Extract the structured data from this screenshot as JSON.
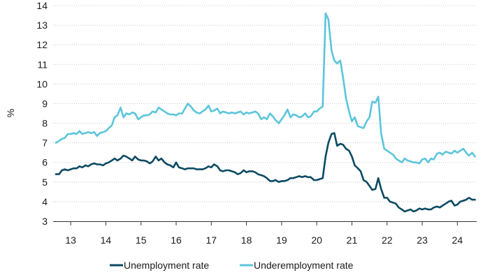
{
  "chart_data": {
    "type": "line",
    "ylabel": "%",
    "xlabel": "",
    "ylim": [
      3,
      14
    ],
    "y_ticks": [
      3,
      4,
      5,
      6,
      7,
      8,
      9,
      10,
      11,
      12,
      13,
      14
    ],
    "xlim": [
      2012.5,
      2024.55
    ],
    "x_ticks": [
      {
        "x": 2013,
        "label": "13"
      },
      {
        "x": 2014,
        "label": "14"
      },
      {
        "x": 2015,
        "label": "15"
      },
      {
        "x": 2016,
        "label": "16"
      },
      {
        "x": 2017,
        "label": "17"
      },
      {
        "x": 2018,
        "label": "18"
      },
      {
        "x": 2019,
        "label": "19"
      },
      {
        "x": 2020,
        "label": "20"
      },
      {
        "x": 2021,
        "label": "21"
      },
      {
        "x": 2022,
        "label": "22"
      },
      {
        "x": 2023,
        "label": "23"
      },
      {
        "x": 2024,
        "label": "24"
      }
    ],
    "grid": "horizontal dotted",
    "legend_position": "bottom",
    "series": [
      {
        "name": "Unemployment rate",
        "color": "#0b4a62",
        "points": [
          [
            2012.58,
            5.4
          ],
          [
            2012.67,
            5.4
          ],
          [
            2012.75,
            5.6
          ],
          [
            2012.83,
            5.65
          ],
          [
            2012.92,
            5.6
          ],
          [
            2013.0,
            5.65
          ],
          [
            2013.08,
            5.7
          ],
          [
            2013.17,
            5.7
          ],
          [
            2013.25,
            5.8
          ],
          [
            2013.33,
            5.75
          ],
          [
            2013.42,
            5.85
          ],
          [
            2013.5,
            5.8
          ],
          [
            2013.58,
            5.9
          ],
          [
            2013.67,
            5.95
          ],
          [
            2013.75,
            5.9
          ],
          [
            2013.83,
            5.9
          ],
          [
            2013.92,
            5.85
          ],
          [
            2014.0,
            5.95
          ],
          [
            2014.08,
            6.0
          ],
          [
            2014.17,
            6.1
          ],
          [
            2014.25,
            6.2
          ],
          [
            2014.33,
            6.1
          ],
          [
            2014.42,
            6.2
          ],
          [
            2014.5,
            6.35
          ],
          [
            2014.58,
            6.3
          ],
          [
            2014.67,
            6.2
          ],
          [
            2014.75,
            6.1
          ],
          [
            2014.83,
            6.3
          ],
          [
            2014.92,
            6.15
          ],
          [
            2015.0,
            6.1
          ],
          [
            2015.08,
            6.1
          ],
          [
            2015.17,
            6.05
          ],
          [
            2015.25,
            5.95
          ],
          [
            2015.33,
            6.05
          ],
          [
            2015.42,
            6.3
          ],
          [
            2015.5,
            6.1
          ],
          [
            2015.58,
            6.2
          ],
          [
            2015.67,
            6.0
          ],
          [
            2015.75,
            5.9
          ],
          [
            2015.83,
            5.85
          ],
          [
            2015.92,
            5.75
          ],
          [
            2016.0,
            6.0
          ],
          [
            2016.08,
            5.75
          ],
          [
            2016.17,
            5.7
          ],
          [
            2016.25,
            5.65
          ],
          [
            2016.33,
            5.7
          ],
          [
            2016.42,
            5.7
          ],
          [
            2016.5,
            5.7
          ],
          [
            2016.58,
            5.65
          ],
          [
            2016.67,
            5.65
          ],
          [
            2016.75,
            5.65
          ],
          [
            2016.83,
            5.7
          ],
          [
            2016.92,
            5.8
          ],
          [
            2017.0,
            5.75
          ],
          [
            2017.08,
            5.9
          ],
          [
            2017.17,
            5.8
          ],
          [
            2017.25,
            5.6
          ],
          [
            2017.33,
            5.55
          ],
          [
            2017.42,
            5.6
          ],
          [
            2017.5,
            5.6
          ],
          [
            2017.58,
            5.55
          ],
          [
            2017.67,
            5.5
          ],
          [
            2017.75,
            5.4
          ],
          [
            2017.83,
            5.45
          ],
          [
            2017.92,
            5.6
          ],
          [
            2018.0,
            5.5
          ],
          [
            2018.08,
            5.55
          ],
          [
            2018.17,
            5.55
          ],
          [
            2018.25,
            5.5
          ],
          [
            2018.33,
            5.4
          ],
          [
            2018.42,
            5.35
          ],
          [
            2018.5,
            5.3
          ],
          [
            2018.58,
            5.2
          ],
          [
            2018.67,
            5.05
          ],
          [
            2018.75,
            5.05
          ],
          [
            2018.83,
            5.1
          ],
          [
            2018.92,
            5.0
          ],
          [
            2019.0,
            5.05
          ],
          [
            2019.08,
            5.05
          ],
          [
            2019.17,
            5.1
          ],
          [
            2019.25,
            5.2
          ],
          [
            2019.33,
            5.2
          ],
          [
            2019.42,
            5.25
          ],
          [
            2019.5,
            5.3
          ],
          [
            2019.58,
            5.25
          ],
          [
            2019.67,
            5.3
          ],
          [
            2019.75,
            5.25
          ],
          [
            2019.83,
            5.25
          ],
          [
            2019.92,
            5.1
          ],
          [
            2020.0,
            5.1
          ],
          [
            2020.08,
            5.15
          ],
          [
            2020.17,
            5.2
          ],
          [
            2020.25,
            6.3
          ],
          [
            2020.33,
            7.0
          ],
          [
            2020.42,
            7.45
          ],
          [
            2020.5,
            7.5
          ],
          [
            2020.58,
            6.85
          ],
          [
            2020.67,
            6.95
          ],
          [
            2020.75,
            6.9
          ],
          [
            2020.83,
            6.7
          ],
          [
            2020.92,
            6.6
          ],
          [
            2021.0,
            6.3
          ],
          [
            2021.08,
            5.85
          ],
          [
            2021.17,
            5.7
          ],
          [
            2021.25,
            5.55
          ],
          [
            2021.33,
            5.1
          ],
          [
            2021.42,
            5.0
          ],
          [
            2021.5,
            4.8
          ],
          [
            2021.58,
            4.6
          ],
          [
            2021.67,
            4.65
          ],
          [
            2021.75,
            5.2
          ],
          [
            2021.83,
            4.65
          ],
          [
            2021.92,
            4.2
          ],
          [
            2022.0,
            4.2
          ],
          [
            2022.08,
            4.0
          ],
          [
            2022.17,
            3.95
          ],
          [
            2022.25,
            3.9
          ],
          [
            2022.33,
            3.7
          ],
          [
            2022.42,
            3.6
          ],
          [
            2022.5,
            3.5
          ],
          [
            2022.58,
            3.55
          ],
          [
            2022.67,
            3.6
          ],
          [
            2022.75,
            3.5
          ],
          [
            2022.83,
            3.55
          ],
          [
            2022.92,
            3.65
          ],
          [
            2023.0,
            3.6
          ],
          [
            2023.08,
            3.65
          ],
          [
            2023.17,
            3.6
          ],
          [
            2023.25,
            3.6
          ],
          [
            2023.33,
            3.7
          ],
          [
            2023.42,
            3.75
          ],
          [
            2023.5,
            3.7
          ],
          [
            2023.58,
            3.8
          ],
          [
            2023.67,
            3.9
          ],
          [
            2023.75,
            4.0
          ],
          [
            2023.83,
            4.05
          ],
          [
            2023.92,
            3.8
          ],
          [
            2024.0,
            3.85
          ],
          [
            2024.08,
            4.0
          ],
          [
            2024.17,
            4.05
          ],
          [
            2024.25,
            4.1
          ],
          [
            2024.33,
            4.2
          ],
          [
            2024.42,
            4.1
          ],
          [
            2024.5,
            4.1
          ]
        ]
      },
      {
        "name": "Underemployment rate",
        "color": "#5bc5db",
        "points": [
          [
            2012.58,
            7.0
          ],
          [
            2012.67,
            7.1
          ],
          [
            2012.75,
            7.2
          ],
          [
            2012.83,
            7.25
          ],
          [
            2012.92,
            7.45
          ],
          [
            2013.0,
            7.45
          ],
          [
            2013.08,
            7.5
          ],
          [
            2013.17,
            7.45
          ],
          [
            2013.25,
            7.6
          ],
          [
            2013.33,
            7.45
          ],
          [
            2013.42,
            7.5
          ],
          [
            2013.5,
            7.55
          ],
          [
            2013.58,
            7.5
          ],
          [
            2013.67,
            7.55
          ],
          [
            2013.75,
            7.35
          ],
          [
            2013.83,
            7.5
          ],
          [
            2013.92,
            7.55
          ],
          [
            2014.0,
            7.6
          ],
          [
            2014.08,
            7.75
          ],
          [
            2014.17,
            7.9
          ],
          [
            2014.25,
            8.3
          ],
          [
            2014.33,
            8.4
          ],
          [
            2014.42,
            8.8
          ],
          [
            2014.5,
            8.3
          ],
          [
            2014.58,
            8.5
          ],
          [
            2014.67,
            8.45
          ],
          [
            2014.75,
            8.55
          ],
          [
            2014.83,
            8.5
          ],
          [
            2014.92,
            8.2
          ],
          [
            2015.0,
            8.3
          ],
          [
            2015.08,
            8.4
          ],
          [
            2015.17,
            8.4
          ],
          [
            2015.25,
            8.45
          ],
          [
            2015.33,
            8.6
          ],
          [
            2015.42,
            8.55
          ],
          [
            2015.5,
            8.8
          ],
          [
            2015.58,
            8.7
          ],
          [
            2015.67,
            8.6
          ],
          [
            2015.75,
            8.5
          ],
          [
            2015.83,
            8.45
          ],
          [
            2015.92,
            8.45
          ],
          [
            2016.0,
            8.4
          ],
          [
            2016.08,
            8.5
          ],
          [
            2016.17,
            8.5
          ],
          [
            2016.25,
            8.75
          ],
          [
            2016.33,
            9.0
          ],
          [
            2016.42,
            8.85
          ],
          [
            2016.5,
            8.65
          ],
          [
            2016.58,
            8.55
          ],
          [
            2016.67,
            8.5
          ],
          [
            2016.75,
            8.6
          ],
          [
            2016.83,
            8.7
          ],
          [
            2016.92,
            8.9
          ],
          [
            2017.0,
            8.6
          ],
          [
            2017.08,
            8.65
          ],
          [
            2017.17,
            8.75
          ],
          [
            2017.25,
            8.5
          ],
          [
            2017.33,
            8.6
          ],
          [
            2017.42,
            8.55
          ],
          [
            2017.5,
            8.5
          ],
          [
            2017.58,
            8.55
          ],
          [
            2017.67,
            8.5
          ],
          [
            2017.75,
            8.55
          ],
          [
            2017.83,
            8.6
          ],
          [
            2017.92,
            8.45
          ],
          [
            2018.0,
            8.55
          ],
          [
            2018.08,
            8.5
          ],
          [
            2018.17,
            8.55
          ],
          [
            2018.25,
            8.6
          ],
          [
            2018.33,
            8.5
          ],
          [
            2018.42,
            8.2
          ],
          [
            2018.5,
            8.3
          ],
          [
            2018.58,
            8.2
          ],
          [
            2018.67,
            8.5
          ],
          [
            2018.75,
            8.35
          ],
          [
            2018.83,
            8.15
          ],
          [
            2018.92,
            8.0
          ],
          [
            2019.0,
            8.2
          ],
          [
            2019.08,
            8.4
          ],
          [
            2019.17,
            8.7
          ],
          [
            2019.25,
            8.3
          ],
          [
            2019.33,
            8.45
          ],
          [
            2019.42,
            8.4
          ],
          [
            2019.5,
            8.3
          ],
          [
            2019.58,
            8.35
          ],
          [
            2019.67,
            8.5
          ],
          [
            2019.75,
            8.3
          ],
          [
            2019.83,
            8.35
          ],
          [
            2019.92,
            8.6
          ],
          [
            2020.0,
            8.6
          ],
          [
            2020.08,
            8.75
          ],
          [
            2020.17,
            8.85
          ],
          [
            2020.25,
            13.6
          ],
          [
            2020.33,
            13.3
          ],
          [
            2020.42,
            11.7
          ],
          [
            2020.5,
            11.2
          ],
          [
            2020.58,
            11.05
          ],
          [
            2020.67,
            11.2
          ],
          [
            2020.75,
            10.3
          ],
          [
            2020.83,
            9.3
          ],
          [
            2020.92,
            8.6
          ],
          [
            2021.0,
            8.1
          ],
          [
            2021.08,
            8.3
          ],
          [
            2021.17,
            7.85
          ],
          [
            2021.25,
            7.8
          ],
          [
            2021.33,
            7.75
          ],
          [
            2021.42,
            8.1
          ],
          [
            2021.5,
            8.3
          ],
          [
            2021.58,
            9.1
          ],
          [
            2021.67,
            9.05
          ],
          [
            2021.75,
            9.35
          ],
          [
            2021.83,
            7.5
          ],
          [
            2021.92,
            6.7
          ],
          [
            2022.0,
            6.6
          ],
          [
            2022.08,
            6.5
          ],
          [
            2022.17,
            6.4
          ],
          [
            2022.25,
            6.2
          ],
          [
            2022.33,
            6.1
          ],
          [
            2022.42,
            6.0
          ],
          [
            2022.5,
            6.2
          ],
          [
            2022.58,
            6.1
          ],
          [
            2022.67,
            6.05
          ],
          [
            2022.75,
            6.0
          ],
          [
            2022.83,
            6.0
          ],
          [
            2022.92,
            5.95
          ],
          [
            2023.0,
            6.15
          ],
          [
            2023.08,
            6.2
          ],
          [
            2023.17,
            6.0
          ],
          [
            2023.25,
            6.2
          ],
          [
            2023.33,
            6.15
          ],
          [
            2023.42,
            6.45
          ],
          [
            2023.5,
            6.5
          ],
          [
            2023.58,
            6.4
          ],
          [
            2023.67,
            6.55
          ],
          [
            2023.75,
            6.5
          ],
          [
            2023.83,
            6.45
          ],
          [
            2023.92,
            6.6
          ],
          [
            2024.0,
            6.5
          ],
          [
            2024.08,
            6.6
          ],
          [
            2024.17,
            6.7
          ],
          [
            2024.25,
            6.5
          ],
          [
            2024.33,
            6.35
          ],
          [
            2024.42,
            6.5
          ],
          [
            2024.5,
            6.3
          ]
        ]
      }
    ]
  }
}
